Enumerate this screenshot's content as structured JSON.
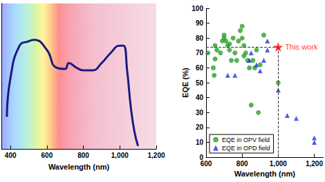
{
  "chart_data": [
    {
      "type": "line",
      "xlabel": "Wavelength (nm)",
      "x": [
        380,
        400,
        450,
        500,
        530,
        600,
        650,
        700,
        720,
        760,
        800,
        850,
        900,
        950,
        1000,
        1020,
        1040,
        1060,
        1080,
        1100
      ],
      "values": [
        22,
        49,
        71,
        74,
        75,
        68,
        56,
        55,
        59,
        56,
        54,
        54,
        59,
        66,
        71,
        71,
        54,
        29,
        12,
        2
      ],
      "color": "#1a1a80",
      "xlim": [
        350,
        1200
      ],
      "xticks": [
        400,
        600,
        800,
        1000,
        1200
      ],
      "ylim": [
        0,
        100
      ],
      "tick_labels": "x"
    },
    {
      "type": "scatter",
      "xlabel": "Wavelength (nm)",
      "ylabel": "EQE (%)",
      "xlim": [
        600,
        1250
      ],
      "xticks": [
        600,
        800,
        1000,
        1200
      ],
      "ylim": [
        0,
        100
      ],
      "yticks": [
        0,
        10,
        20,
        30,
        40,
        50,
        60,
        70,
        80,
        90,
        100
      ],
      "legend": "bottom-left",
      "series": [
        {
          "name": "EQE in OPV field",
          "color": "#2ca02c",
          "marker": "circle",
          "x": [
            610,
            640,
            645,
            650,
            650,
            660,
            680,
            690,
            700,
            700,
            710,
            720,
            730,
            730,
            740,
            750,
            760,
            770,
            780,
            790,
            800,
            800,
            810,
            810,
            820,
            830,
            840,
            850,
            860,
            870,
            880,
            890,
            900,
            920,
            1000
          ],
          "values": [
            70,
            60,
            55,
            75,
            66,
            72,
            70,
            78,
            82,
            80,
            78,
            75,
            72,
            76,
            65,
            80,
            70,
            65,
            78,
            85,
            88,
            80,
            75,
            68,
            70,
            65,
            60,
            35,
            65,
            60,
            72,
            30,
            62,
            82,
            50
          ]
        },
        {
          "name": "EQE in OPD field",
          "color": "#2233dd",
          "marker": "triangle",
          "x": [
            720,
            760,
            840,
            850,
            880,
            900,
            920,
            940,
            940,
            1000,
            1050,
            1100,
            1200,
            1200
          ],
          "values": [
            55,
            55,
            65,
            70,
            62,
            58,
            65,
            72,
            78,
            45,
            28,
            26,
            13,
            10
          ]
        }
      ],
      "annotation": {
        "text": "This work",
        "x": 1000,
        "y": 74,
        "color": "#ff0000",
        "marker": "star",
        "line_style": "dashed"
      }
    }
  ]
}
